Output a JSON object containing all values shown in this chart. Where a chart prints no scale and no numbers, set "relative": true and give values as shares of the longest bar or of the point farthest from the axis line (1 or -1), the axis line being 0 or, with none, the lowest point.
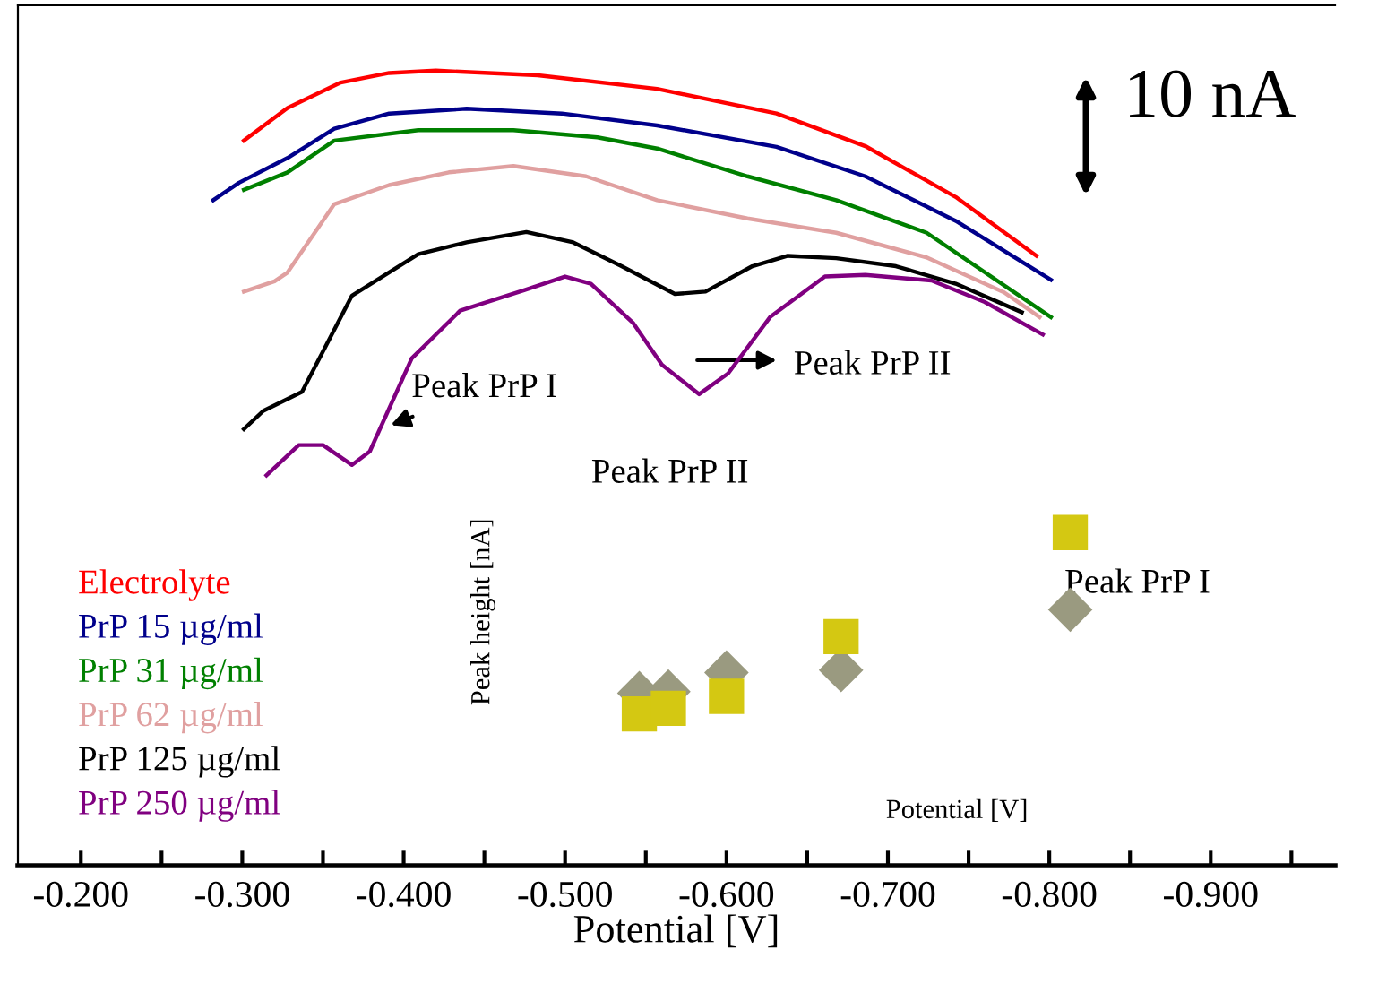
{
  "chart_data": {
    "type": "line",
    "relative": true,
    "xlabel": "Potential [V]",
    "xlim": [
      -0.161,
      -0.977
    ],
    "xticks": [
      {
        "value": -0.2,
        "label": "-0.200"
      },
      {
        "value": -0.25,
        "label": null
      },
      {
        "value": -0.3,
        "label": "-0.300"
      },
      {
        "value": -0.35,
        "label": null
      },
      {
        "value": -0.4,
        "label": "-0.400"
      },
      {
        "value": -0.45,
        "label": null
      },
      {
        "value": -0.5,
        "label": "-0.500"
      },
      {
        "value": -0.55,
        "label": null
      },
      {
        "value": -0.6,
        "label": "-0.600"
      },
      {
        "value": -0.65,
        "label": null
      },
      {
        "value": -0.7,
        "label": "-0.700"
      },
      {
        "value": -0.75,
        "label": null
      },
      {
        "value": -0.8,
        "label": "-0.800"
      },
      {
        "value": -0.85,
        "label": null
      },
      {
        "value": -0.9,
        "label": "-0.900"
      },
      {
        "value": -0.95,
        "label": null
      }
    ],
    "legend": "bottom left",
    "grid": false,
    "series": [
      {
        "name": "Electrolyte",
        "color": "#ff0000",
        "x": [
          -0.301,
          -0.328,
          -0.361,
          -0.391,
          -0.42,
          -0.483,
          -0.557,
          -0.631,
          -0.686,
          -0.742,
          -0.792
        ],
        "values": [
          0.912,
          0.953,
          0.985,
          0.997,
          1,
          0.994,
          0.977,
          0.946,
          0.905,
          0.841,
          0.767
        ]
      },
      {
        "name": "PrP 15 µg/ml",
        "color": "#00008b",
        "x": [
          -0.282,
          -0.298,
          -0.328,
          -0.357,
          -0.391,
          -0.439,
          -0.498,
          -0.557,
          -0.631,
          -0.686,
          -0.742,
          -0.801
        ],
        "values": [
          0.837,
          0.859,
          0.89,
          0.927,
          0.946,
          0.952,
          0.946,
          0.931,
          0.904,
          0.867,
          0.811,
          0.737
        ]
      },
      {
        "name": "PrP 31 µg/ml",
        "color": "#008000",
        "x": [
          -0.301,
          -0.328,
          -0.357,
          -0.409,
          -0.468,
          -0.52,
          -0.557,
          -0.613,
          -0.668,
          -0.724,
          -0.801
        ],
        "values": [
          0.85,
          0.872,
          0.912,
          0.925,
          0.925,
          0.916,
          0.902,
          0.867,
          0.837,
          0.796,
          0.69
        ]
      },
      {
        "name": "PrP 62 µg/ml",
        "color": "#e0a0a0",
        "x": [
          -0.301,
          -0.32,
          -0.328,
          -0.357,
          -0.391,
          -0.428,
          -0.468,
          -0.513,
          -0.557,
          -0.613,
          -0.668,
          -0.724,
          -0.772,
          -0.794
        ],
        "values": [
          0.722,
          0.735,
          0.746,
          0.832,
          0.856,
          0.872,
          0.88,
          0.867,
          0.837,
          0.814,
          0.796,
          0.765,
          0.721,
          0.69
        ]
      },
      {
        "name": "PrP 125 µg/ml",
        "color": "#000000",
        "x": [
          -0.301,
          -0.313,
          -0.337,
          -0.368,
          -0.409,
          -0.439,
          -0.476,
          -0.505,
          -0.535,
          -0.568,
          -0.587,
          -0.616,
          -0.638,
          -0.668,
          -0.705,
          -0.742,
          -0.783
        ],
        "values": [
          0.549,
          0.572,
          0.596,
          0.717,
          0.769,
          0.784,
          0.797,
          0.784,
          0.754,
          0.719,
          0.722,
          0.754,
          0.767,
          0.764,
          0.754,
          0.732,
          0.696
        ]
      },
      {
        "name": "PrP 250 µg/ml",
        "color": "#800080",
        "x": [
          -0.315,
          -0.335,
          -0.35,
          -0.368,
          -0.379,
          -0.405,
          -0.435,
          -0.475,
          -0.5,
          -0.516,
          -0.542,
          -0.56,
          -0.583,
          -0.601,
          -0.627,
          -0.661,
          -0.686,
          -0.727,
          -0.76,
          -0.796
        ],
        "values": [
          0.491,
          0.529,
          0.529,
          0.504,
          0.521,
          0.638,
          0.698,
          0.724,
          0.741,
          0.732,
          0.683,
          0.63,
          0.593,
          0.619,
          0.69,
          0.741,
          0.743,
          0.736,
          0.709,
          0.668
        ]
      },
      {
        "type": "scatter",
        "marker": "diamond",
        "color": "#9a9a80",
        "x": [
          -0.546,
          -0.564,
          -0.6,
          -0.671,
          -0.813
        ],
        "values": [
          0.217,
          0.219,
          0.243,
          0.246,
          0.322
        ]
      },
      {
        "type": "scatter",
        "marker": "square",
        "color": "#d4c812",
        "x": [
          -0.546,
          -0.564,
          -0.6,
          -0.671,
          -0.813
        ],
        "values": [
          0.191,
          0.198,
          0.213,
          0.288,
          0.419
        ]
      }
    ],
    "annotations": [
      {
        "text": "Peak PrP I",
        "x": -0.392,
        "y": 0.554
      },
      "Peak PrP II",
      "Peak PrP II",
      "Peak PrP I",
      "Peak height [nA]",
      "Potential [V]",
      "10 nA"
    ]
  }
}
